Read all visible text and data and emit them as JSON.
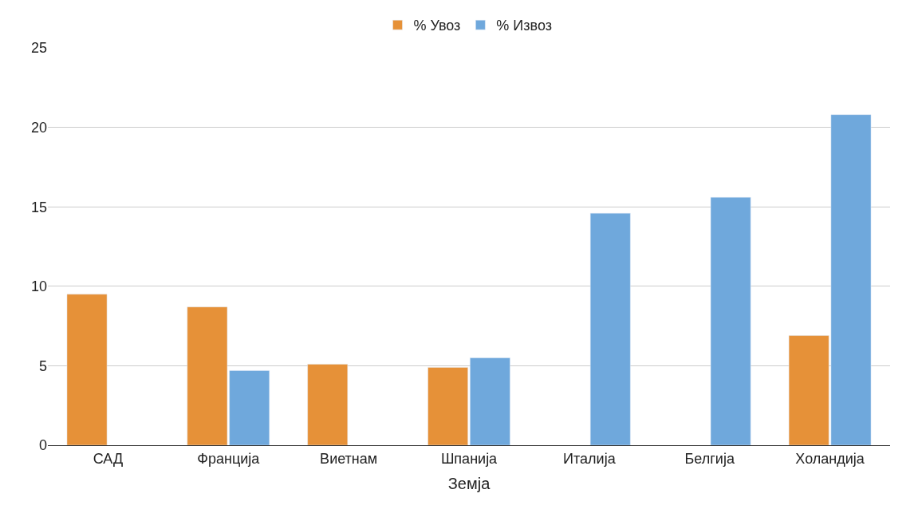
{
  "chart_data": {
    "type": "bar",
    "xlabel": "Земја",
    "categories": [
      "САД",
      "Франција",
      "Виетнам",
      "Шпанија",
      "Италија",
      "Белгија",
      "Холандија"
    ],
    "series": [
      {
        "name": "% Увоз",
        "color": "#e69138",
        "values": [
          9.5,
          8.7,
          5.1,
          4.9,
          null,
          null,
          6.9
        ]
      },
      {
        "name": "% Извоз",
        "color": "#6fa8dc",
        "values": [
          null,
          4.7,
          null,
          5.5,
          14.6,
          15.6,
          20.8
        ]
      }
    ],
    "ylim": [
      0,
      25
    ],
    "yticks": [
      0,
      5,
      10,
      15,
      20,
      25
    ],
    "grid": "y",
    "legend": "top"
  }
}
